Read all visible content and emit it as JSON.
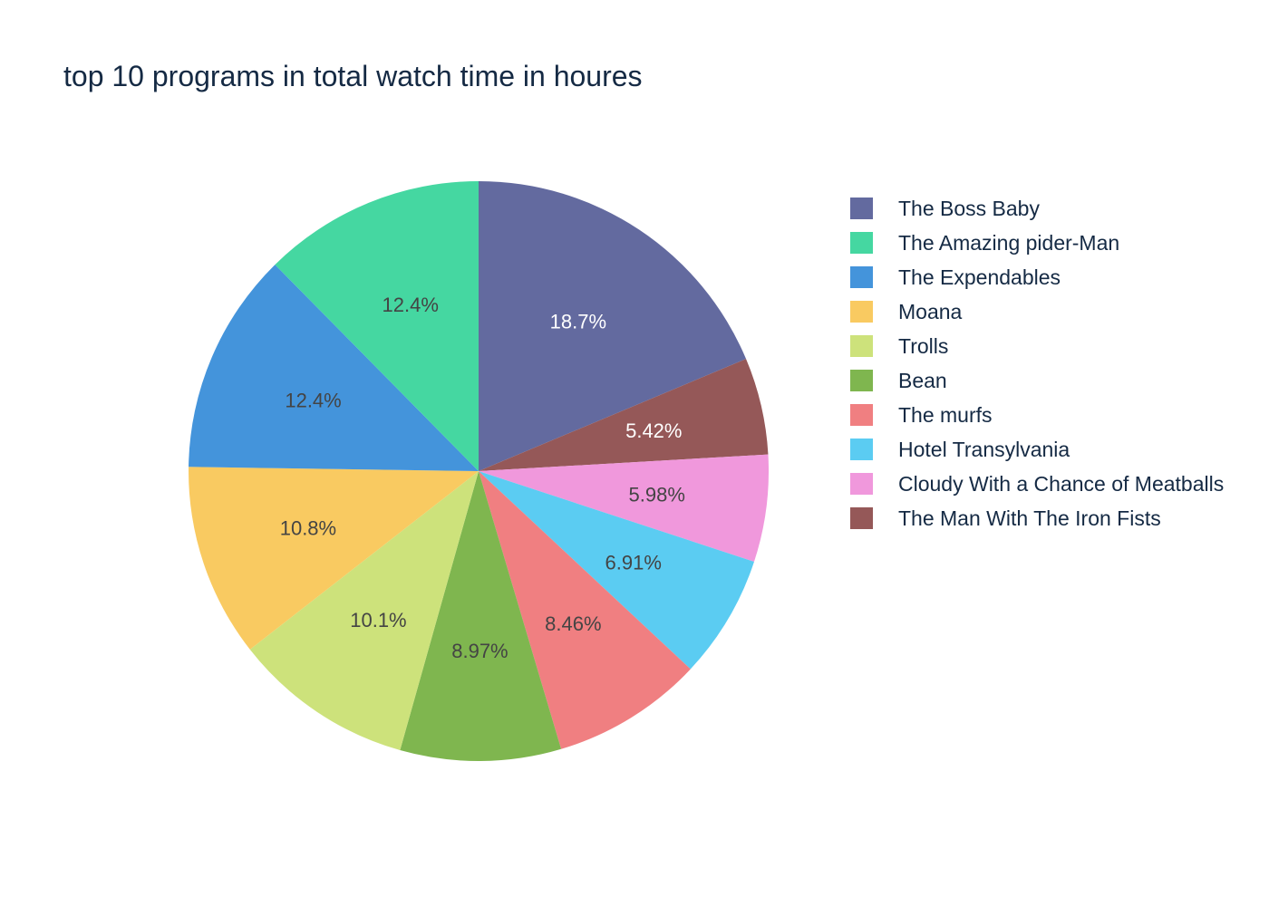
{
  "chart_data": {
    "type": "pie",
    "title": "top 10 programs in total watch time in houres",
    "slices": [
      {
        "label": "The Boss Baby",
        "value": 18.7,
        "text": "18.7%",
        "color": "#636a9f",
        "text_color": "#ffffff"
      },
      {
        "label": "The Man With The Iron Fists",
        "value": 5.42,
        "text": "5.42%",
        "color": "#955858",
        "text_color": "#ffffff"
      },
      {
        "label": "Cloudy With a Chance of Meatballs",
        "value": 5.98,
        "text": "5.98%",
        "color": "#f098dc",
        "text_color": "#444444"
      },
      {
        "label": "Hotel Transylvania",
        "value": 6.91,
        "text": "6.91%",
        "color": "#5bccf2",
        "text_color": "#444444"
      },
      {
        "label": "The murfs",
        "value": 8.46,
        "text": "8.46%",
        "color": "#f07f81",
        "text_color": "#444444"
      },
      {
        "label": "Bean",
        "value": 8.97,
        "text": "8.97%",
        "color": "#7fb64f",
        "text_color": "#444444"
      },
      {
        "label": "Trolls",
        "value": 10.1,
        "text": "10.1%",
        "color": "#cde27b",
        "text_color": "#444444"
      },
      {
        "label": "Moana",
        "value": 10.8,
        "text": "10.8%",
        "color": "#f9ca61",
        "text_color": "#444444"
      },
      {
        "label": "The Expendables",
        "value": 12.4,
        "text": "12.4%",
        "color": "#4494db",
        "text_color": "#444444"
      },
      {
        "label": "The Amazing pider-Man",
        "value": 12.4,
        "text": "12.4%",
        "color": "#45d7a1",
        "text_color": "#444444"
      }
    ],
    "direction": "clockwise",
    "start": "top",
    "legend_position": "right"
  },
  "legend": {
    "items": [
      {
        "label": "The Boss Baby",
        "color": "#636a9f"
      },
      {
        "label": "The Amazing pider-Man",
        "color": "#45d7a1"
      },
      {
        "label": "The Expendables",
        "color": "#4494db"
      },
      {
        "label": "Moana",
        "color": "#f9ca61"
      },
      {
        "label": "Trolls",
        "color": "#cde27b"
      },
      {
        "label": "Bean",
        "color": "#7fb64f"
      },
      {
        "label": "The murfs",
        "color": "#f07f81"
      },
      {
        "label": "Hotel Transylvania",
        "color": "#5bccf2"
      },
      {
        "label": "Cloudy With a Chance of Meatballs",
        "color": "#f098dc"
      },
      {
        "label": "The Man With The Iron Fists",
        "color": "#955858"
      }
    ]
  }
}
